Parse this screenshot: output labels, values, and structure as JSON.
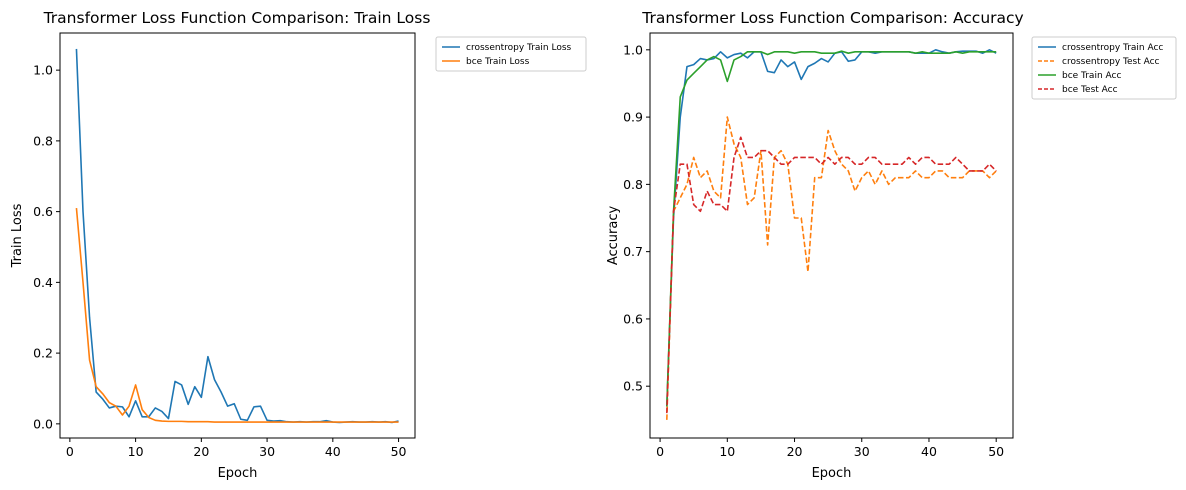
{
  "chart_data": [
    {
      "type": "line",
      "title": "Transformer Loss Function Comparison: Train Loss",
      "xlabel": "Epoch",
      "ylabel": "Train Loss",
      "xlim": [
        -1.5,
        52.5
      ],
      "ylim": [
        -0.04,
        1.105
      ],
      "xticks": [
        0,
        10,
        20,
        30,
        40,
        50
      ],
      "xtick_labels": [
        "0",
        "10",
        "20",
        "30",
        "40",
        "50"
      ],
      "yticks": [
        0.0,
        0.2,
        0.4,
        0.6,
        0.8,
        1.0
      ],
      "ytick_labels": [
        "0.0",
        "0.2",
        "0.4",
        "0.6",
        "0.8",
        "1.0"
      ],
      "grid": false,
      "legend_position": "outside-top-right",
      "x": [
        1,
        2,
        3,
        4,
        5,
        6,
        7,
        8,
        9,
        10,
        11,
        12,
        13,
        14,
        15,
        16,
        17,
        18,
        19,
        20,
        21,
        22,
        23,
        24,
        25,
        26,
        27,
        28,
        29,
        30,
        31,
        32,
        33,
        34,
        35,
        36,
        37,
        38,
        39,
        40,
        41,
        42,
        43,
        44,
        45,
        46,
        47,
        48,
        49,
        50
      ],
      "series": [
        {
          "name": "crossentropy Train Loss",
          "color": "#1f77b4",
          "style": "solid",
          "values": [
            1.06,
            0.6,
            0.3,
            0.09,
            0.07,
            0.045,
            0.05,
            0.048,
            0.02,
            0.065,
            0.02,
            0.02,
            0.045,
            0.035,
            0.015,
            0.12,
            0.11,
            0.055,
            0.105,
            0.075,
            0.19,
            0.125,
            0.09,
            0.05,
            0.057,
            0.013,
            0.01,
            0.048,
            0.05,
            0.01,
            0.008,
            0.009,
            0.006,
            0.005,
            0.006,
            0.005,
            0.006,
            0.006,
            0.009,
            0.005,
            0.004,
            0.005,
            0.006,
            0.005,
            0.005,
            0.006,
            0.005,
            0.006,
            0.004,
            0.008
          ]
        },
        {
          "name": "bce Train Loss",
          "color": "#ff7f0e",
          "style": "solid",
          "values": [
            0.61,
            0.4,
            0.18,
            0.105,
            0.085,
            0.06,
            0.05,
            0.025,
            0.05,
            0.11,
            0.04,
            0.018,
            0.01,
            0.008,
            0.007,
            0.007,
            0.007,
            0.006,
            0.006,
            0.006,
            0.006,
            0.005,
            0.005,
            0.005,
            0.005,
            0.005,
            0.005,
            0.005,
            0.005,
            0.005,
            0.005,
            0.005,
            0.005,
            0.005,
            0.005,
            0.005,
            0.005,
            0.005,
            0.005,
            0.005,
            0.005,
            0.005,
            0.005,
            0.005,
            0.005,
            0.005,
            0.005,
            0.005,
            0.005,
            0.005
          ]
        }
      ]
    },
    {
      "type": "line",
      "title": "Transformer Loss Function Comparison: Accuracy",
      "xlabel": "Epoch",
      "ylabel": "Accuracy",
      "xlim": [
        -1.5,
        52.5
      ],
      "ylim": [
        0.423,
        1.025
      ],
      "xticks": [
        0,
        10,
        20,
        30,
        40,
        50
      ],
      "xtick_labels": [
        "0",
        "10",
        "20",
        "30",
        "40",
        "50"
      ],
      "yticks": [
        0.5,
        0.6,
        0.7,
        0.8,
        0.9,
        1.0
      ],
      "ytick_labels": [
        "0.5",
        "0.6",
        "0.7",
        "0.8",
        "0.9",
        "1.0"
      ],
      "grid": false,
      "legend_position": "outside-top-right",
      "x": [
        1,
        2,
        3,
        4,
        5,
        6,
        7,
        8,
        9,
        10,
        11,
        12,
        13,
        14,
        15,
        16,
        17,
        18,
        19,
        20,
        21,
        22,
        23,
        24,
        25,
        26,
        27,
        28,
        29,
        30,
        31,
        32,
        33,
        34,
        35,
        36,
        37,
        38,
        39,
        40,
        41,
        42,
        43,
        44,
        45,
        46,
        47,
        48,
        49,
        50
      ],
      "series": [
        {
          "name": "crossentropy Train Acc",
          "color": "#1f77b4",
          "style": "solid",
          "values": [
            0.47,
            0.75,
            0.9,
            0.975,
            0.978,
            0.987,
            0.985,
            0.987,
            0.997,
            0.988,
            0.993,
            0.995,
            0.988,
            0.997,
            0.997,
            0.968,
            0.966,
            0.985,
            0.975,
            0.982,
            0.956,
            0.975,
            0.98,
            0.987,
            0.982,
            0.995,
            0.997,
            0.983,
            0.985,
            0.997,
            0.997,
            0.995,
            0.997,
            0.997,
            0.997,
            0.997,
            0.997,
            0.995,
            0.995,
            0.995,
            1.0,
            0.997,
            0.995,
            0.997,
            0.998,
            0.998,
            0.998,
            0.995,
            1.0,
            0.995
          ]
        },
        {
          "name": "crossentropy Test Acc",
          "color": "#ff7f0e",
          "style": "dashed",
          "values": [
            0.45,
            0.76,
            0.78,
            0.8,
            0.84,
            0.81,
            0.82,
            0.79,
            0.78,
            0.9,
            0.86,
            0.84,
            0.77,
            0.78,
            0.85,
            0.71,
            0.84,
            0.85,
            0.83,
            0.75,
            0.75,
            0.67,
            0.81,
            0.81,
            0.88,
            0.85,
            0.83,
            0.82,
            0.79,
            0.81,
            0.82,
            0.8,
            0.82,
            0.8,
            0.81,
            0.81,
            0.81,
            0.82,
            0.81,
            0.81,
            0.82,
            0.82,
            0.81,
            0.81,
            0.81,
            0.82,
            0.82,
            0.82,
            0.81,
            0.82
          ]
        },
        {
          "name": "bce Train Acc",
          "color": "#2ca02c",
          "style": "solid",
          "values": [
            0.47,
            0.76,
            0.93,
            0.955,
            0.965,
            0.975,
            0.985,
            0.99,
            0.985,
            0.953,
            0.985,
            0.99,
            0.997,
            0.997,
            0.997,
            0.993,
            0.997,
            0.997,
            0.997,
            0.995,
            0.997,
            0.997,
            0.997,
            0.995,
            0.995,
            0.995,
            0.998,
            0.995,
            0.997,
            0.997,
            0.997,
            0.997,
            0.997,
            0.997,
            0.997,
            0.997,
            0.997,
            0.995,
            0.997,
            0.995,
            0.995,
            0.995,
            0.995,
            0.997,
            0.995,
            0.997,
            0.997,
            0.997,
            0.997,
            0.997
          ]
        },
        {
          "name": "bce Test Acc",
          "color": "#d62728",
          "style": "dashed",
          "values": [
            0.46,
            0.76,
            0.83,
            0.83,
            0.77,
            0.76,
            0.79,
            0.77,
            0.77,
            0.76,
            0.84,
            0.87,
            0.84,
            0.84,
            0.85,
            0.85,
            0.84,
            0.83,
            0.83,
            0.84,
            0.84,
            0.84,
            0.84,
            0.83,
            0.84,
            0.83,
            0.84,
            0.84,
            0.83,
            0.83,
            0.84,
            0.84,
            0.83,
            0.83,
            0.83,
            0.83,
            0.84,
            0.83,
            0.84,
            0.84,
            0.83,
            0.83,
            0.83,
            0.84,
            0.83,
            0.82,
            0.82,
            0.82,
            0.83,
            0.82
          ]
        }
      ]
    }
  ]
}
